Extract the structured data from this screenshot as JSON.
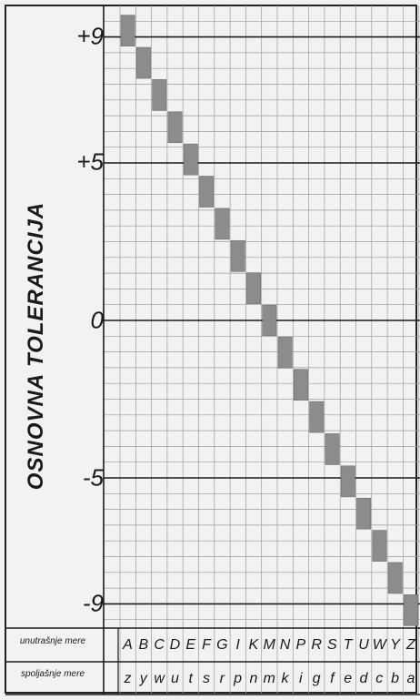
{
  "chart_data": {
    "type": "diagram",
    "ylabel": "OSNOVNA TOLERANCIJA",
    "y_ticks": [
      "+9",
      "+5",
      "0",
      "-5",
      "-9"
    ],
    "ylim": [
      -10,
      10
    ],
    "rows": [
      {
        "label": "unutrašnje mere",
        "letters": [
          "A",
          "B",
          "C",
          "D",
          "E",
          "F",
          "G",
          "I",
          "K",
          "M",
          "N",
          "P",
          "R",
          "S",
          "T",
          "U",
          "W",
          "Y",
          "Z"
        ]
      },
      {
        "label": "spoljašnje mere",
        "letters": [
          "z",
          "y",
          "w",
          "u",
          "t",
          "s",
          "r",
          "p",
          "n",
          "m",
          "k",
          "i",
          "g",
          "f",
          "e",
          "d",
          "c",
          "b",
          "a"
        ]
      }
    ],
    "bar_color": "#8c8c8c"
  }
}
